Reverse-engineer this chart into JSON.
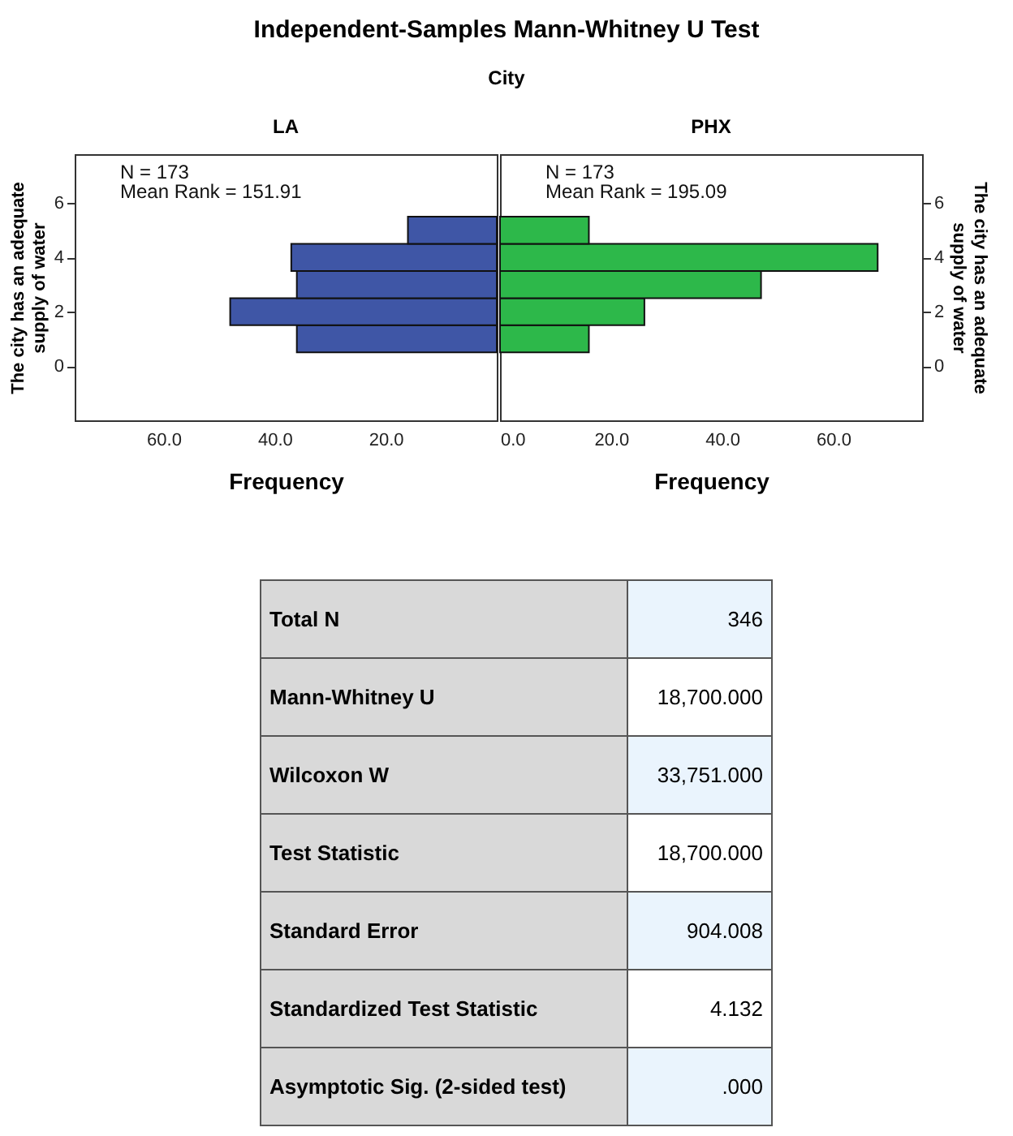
{
  "chart_data": [
    {
      "type": "other",
      "title": "Independent-Samples Mann-Whitney U Test",
      "subtitle": "City"
    },
    {
      "type": "histogram",
      "orientation": "horizontal",
      "title": "LA",
      "xlabel": "Frequency",
      "ylabel": "The city has an adequate supply of water",
      "bins": [
        0.5,
        1.5,
        2.5,
        3.5,
        4.5,
        5.5
      ],
      "values": [
        36,
        48,
        36,
        37,
        16
      ],
      "colors": [
        "#3f56a6",
        "#3f56a6",
        "#3f56a6",
        "#3f56a6",
        "#3f56a6"
      ],
      "xlim": [
        76,
        0
      ],
      "xticks": [
        {
          "value": 60,
          "label": "60.0"
        },
        {
          "value": 40,
          "label": "40.0"
        },
        {
          "value": 20,
          "label": "20.0"
        },
        {
          "value": 0,
          "label": null
        }
      ],
      "ylim": [
        -2,
        7.8
      ],
      "yticks": [
        0,
        2,
        4,
        6
      ],
      "annotations": [
        "N = 173",
        "Mean Rank = 151.91"
      ]
    },
    {
      "type": "histogram",
      "orientation": "horizontal",
      "title": "PHX",
      "xlabel": "Frequency",
      "ylabel": "The city has an adequate supply of water",
      "bins": [
        0.5,
        1.5,
        2.5,
        3.5,
        4.5,
        5.5
      ],
      "values": [
        16,
        26,
        47,
        68,
        16
      ],
      "colors": [
        "#2db84a",
        "#2db84a",
        "#2db84a",
        "#2db84a",
        "#2db84a"
      ],
      "xlim": [
        0,
        76
      ],
      "xticks": [
        {
          "value": 0,
          "label": "0.0"
        },
        {
          "value": 20,
          "label": "20.0"
        },
        {
          "value": 40,
          "label": "40.0"
        },
        {
          "value": 60,
          "label": "60.0"
        }
      ],
      "ylim": [
        -2,
        7.8
      ],
      "yticks": [
        0,
        2,
        4,
        6
      ],
      "annotations": [
        "N = 173",
        "Mean Rank = 195.09"
      ]
    },
    {
      "type": "other",
      "annotations": [
        "Total N",
        "346",
        "Mann-Whitney U",
        "18,700.000",
        "Wilcoxon W",
        "33,751.000",
        "Test Statistic",
        "18,700.000",
        "Standard Error",
        "904.008",
        "Standardized Test Statistic",
        "4.132",
        "Asymptotic Sig. (2-sided test)",
        ".000"
      ]
    }
  ]
}
